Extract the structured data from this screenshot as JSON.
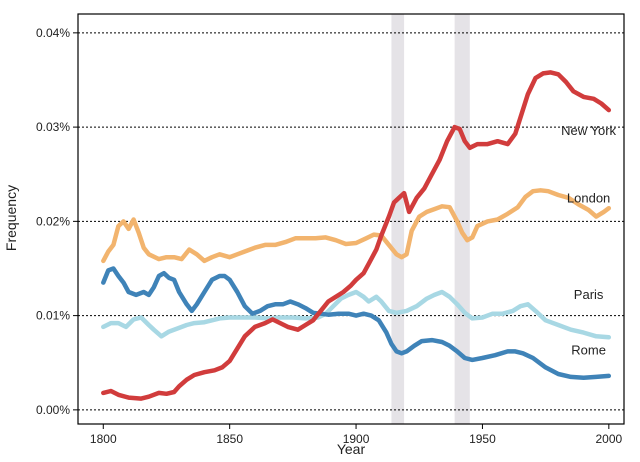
{
  "chart_data": {
    "type": "line",
    "xlabel": "Year",
    "ylabel": "Frequency",
    "xlim": [
      1790,
      2006
    ],
    "ylim": [
      -0.0015,
      0.042
    ],
    "x_ticks": [
      1800,
      1850,
      1900,
      1950,
      2000
    ],
    "x_tick_labels": [
      "1800",
      "1850",
      "1900",
      "1950",
      "2000"
    ],
    "y_ticks": [
      0,
      0.01,
      0.02,
      0.03,
      0.04
    ],
    "y_tick_labels": [
      "0.00%",
      "0.01%",
      "0.02%",
      "0.03%",
      "0.04%"
    ],
    "grid": "horizontal-dotted",
    "legend": "inline-right",
    "shaded_periods": [
      [
        1914,
        1919
      ],
      [
        1939,
        1945
      ]
    ],
    "series": [
      {
        "name": "New York",
        "color": "#d13c3c",
        "points": [
          [
            1800,
            0.0018
          ],
          [
            1803,
            0.002
          ],
          [
            1806,
            0.0016
          ],
          [
            1810,
            0.0013
          ],
          [
            1815,
            0.0012
          ],
          [
            1818,
            0.0014
          ],
          [
            1822,
            0.0018
          ],
          [
            1825,
            0.0017
          ],
          [
            1828,
            0.0019
          ],
          [
            1830,
            0.0025
          ],
          [
            1833,
            0.0032
          ],
          [
            1836,
            0.0037
          ],
          [
            1840,
            0.004
          ],
          [
            1844,
            0.0042
          ],
          [
            1847,
            0.0045
          ],
          [
            1850,
            0.0052
          ],
          [
            1853,
            0.0065
          ],
          [
            1856,
            0.0078
          ],
          [
            1860,
            0.0088
          ],
          [
            1864,
            0.0092
          ],
          [
            1867,
            0.0096
          ],
          [
            1870,
            0.0092
          ],
          [
            1873,
            0.0088
          ],
          [
            1877,
            0.0085
          ],
          [
            1880,
            0.009
          ],
          [
            1883,
            0.0095
          ],
          [
            1886,
            0.0105
          ],
          [
            1889,
            0.0115
          ],
          [
            1892,
            0.012
          ],
          [
            1895,
            0.0125
          ],
          [
            1898,
            0.0132
          ],
          [
            1900,
            0.0138
          ],
          [
            1903,
            0.0145
          ],
          [
            1905,
            0.0155
          ],
          [
            1908,
            0.017
          ],
          [
            1910,
            0.0185
          ],
          [
            1913,
            0.0205
          ],
          [
            1915,
            0.022
          ],
          [
            1917,
            0.0225
          ],
          [
            1919,
            0.023
          ],
          [
            1921,
            0.021
          ],
          [
            1924,
            0.0225
          ],
          [
            1927,
            0.0235
          ],
          [
            1930,
            0.025
          ],
          [
            1933,
            0.0265
          ],
          [
            1936,
            0.0285
          ],
          [
            1939,
            0.03
          ],
          [
            1941,
            0.0298
          ],
          [
            1943,
            0.0285
          ],
          [
            1945,
            0.0278
          ],
          [
            1948,
            0.0282
          ],
          [
            1952,
            0.0282
          ],
          [
            1956,
            0.0285
          ],
          [
            1960,
            0.0282
          ],
          [
            1963,
            0.0293
          ],
          [
            1965,
            0.031
          ],
          [
            1968,
            0.0335
          ],
          [
            1971,
            0.0352
          ],
          [
            1974,
            0.0357
          ],
          [
            1977,
            0.0358
          ],
          [
            1980,
            0.0356
          ],
          [
            1983,
            0.0348
          ],
          [
            1986,
            0.0338
          ],
          [
            1990,
            0.0332
          ],
          [
            1994,
            0.033
          ],
          [
            1997,
            0.0325
          ],
          [
            2000,
            0.0318
          ]
        ]
      },
      {
        "name": "London",
        "color": "#f2b46e",
        "points": [
          [
            1800,
            0.0158
          ],
          [
            1802,
            0.0168
          ],
          [
            1804,
            0.0175
          ],
          [
            1806,
            0.0195
          ],
          [
            1808,
            0.02
          ],
          [
            1810,
            0.0192
          ],
          [
            1812,
            0.0202
          ],
          [
            1814,
            0.0188
          ],
          [
            1816,
            0.0172
          ],
          [
            1818,
            0.0165
          ],
          [
            1822,
            0.016
          ],
          [
            1825,
            0.0162
          ],
          [
            1828,
            0.0162
          ],
          [
            1831,
            0.016
          ],
          [
            1834,
            0.017
          ],
          [
            1837,
            0.0165
          ],
          [
            1840,
            0.0158
          ],
          [
            1843,
            0.0162
          ],
          [
            1846,
            0.0165
          ],
          [
            1850,
            0.0162
          ],
          [
            1853,
            0.0165
          ],
          [
            1856,
            0.0168
          ],
          [
            1860,
            0.0172
          ],
          [
            1864,
            0.0175
          ],
          [
            1868,
            0.0175
          ],
          [
            1872,
            0.0178
          ],
          [
            1876,
            0.0182
          ],
          [
            1880,
            0.0182
          ],
          [
            1884,
            0.0182
          ],
          [
            1888,
            0.0183
          ],
          [
            1892,
            0.018
          ],
          [
            1896,
            0.0176
          ],
          [
            1900,
            0.0177
          ],
          [
            1904,
            0.0182
          ],
          [
            1907,
            0.0186
          ],
          [
            1910,
            0.0185
          ],
          [
            1913,
            0.0175
          ],
          [
            1916,
            0.0165
          ],
          [
            1918,
            0.0162
          ],
          [
            1920,
            0.0165
          ],
          [
            1922,
            0.019
          ],
          [
            1925,
            0.0205
          ],
          [
            1928,
            0.021
          ],
          [
            1931,
            0.0213
          ],
          [
            1934,
            0.0216
          ],
          [
            1937,
            0.0215
          ],
          [
            1940,
            0.02
          ],
          [
            1942,
            0.0188
          ],
          [
            1944,
            0.018
          ],
          [
            1946,
            0.0183
          ],
          [
            1948,
            0.0195
          ],
          [
            1952,
            0.02
          ],
          [
            1956,
            0.0202
          ],
          [
            1960,
            0.0208
          ],
          [
            1964,
            0.0215
          ],
          [
            1967,
            0.0226
          ],
          [
            1970,
            0.0232
          ],
          [
            1973,
            0.0233
          ],
          [
            1976,
            0.0232
          ],
          [
            1980,
            0.0228
          ],
          [
            1984,
            0.0225
          ],
          [
            1988,
            0.0218
          ],
          [
            1992,
            0.0212
          ],
          [
            1995,
            0.0205
          ],
          [
            1998,
            0.021
          ],
          [
            2000,
            0.0214
          ]
        ]
      },
      {
        "name": "Paris",
        "color": "#a8d8e4",
        "points": [
          [
            1800,
            0.0088
          ],
          [
            1803,
            0.0092
          ],
          [
            1806,
            0.0092
          ],
          [
            1809,
            0.0088
          ],
          [
            1812,
            0.0096
          ],
          [
            1815,
            0.0098
          ],
          [
            1818,
            0.009
          ],
          [
            1820,
            0.0085
          ],
          [
            1823,
            0.0078
          ],
          [
            1826,
            0.0083
          ],
          [
            1830,
            0.0087
          ],
          [
            1833,
            0.009
          ],
          [
            1836,
            0.0092
          ],
          [
            1840,
            0.0093
          ],
          [
            1843,
            0.0095
          ],
          [
            1846,
            0.0097
          ],
          [
            1850,
            0.0098
          ],
          [
            1855,
            0.0098
          ],
          [
            1860,
            0.0098
          ],
          [
            1865,
            0.0097
          ],
          [
            1870,
            0.0098
          ],
          [
            1875,
            0.0098
          ],
          [
            1880,
            0.0097
          ],
          [
            1885,
            0.0098
          ],
          [
            1888,
            0.0102
          ],
          [
            1891,
            0.011
          ],
          [
            1894,
            0.0118
          ],
          [
            1897,
            0.0122
          ],
          [
            1900,
            0.0125
          ],
          [
            1903,
            0.012
          ],
          [
            1905,
            0.0115
          ],
          [
            1908,
            0.012
          ],
          [
            1910,
            0.0115
          ],
          [
            1913,
            0.0105
          ],
          [
            1916,
            0.0103
          ],
          [
            1920,
            0.0105
          ],
          [
            1924,
            0.011
          ],
          [
            1928,
            0.0118
          ],
          [
            1931,
            0.0122
          ],
          [
            1934,
            0.0125
          ],
          [
            1937,
            0.012
          ],
          [
            1940,
            0.0112
          ],
          [
            1943,
            0.0103
          ],
          [
            1946,
            0.0097
          ],
          [
            1950,
            0.0098
          ],
          [
            1954,
            0.0102
          ],
          [
            1958,
            0.0102
          ],
          [
            1962,
            0.0105
          ],
          [
            1965,
            0.011
          ],
          [
            1968,
            0.0112
          ],
          [
            1971,
            0.0105
          ],
          [
            1975,
            0.0095
          ],
          [
            1980,
            0.009
          ],
          [
            1985,
            0.0085
          ],
          [
            1990,
            0.0082
          ],
          [
            1995,
            0.0078
          ],
          [
            2000,
            0.0077
          ]
        ]
      },
      {
        "name": "Rome",
        "color": "#3f83b8",
        "points": [
          [
            1800,
            0.0135
          ],
          [
            1802,
            0.0148
          ],
          [
            1804,
            0.015
          ],
          [
            1806,
            0.0142
          ],
          [
            1808,
            0.0135
          ],
          [
            1810,
            0.0125
          ],
          [
            1813,
            0.0122
          ],
          [
            1816,
            0.0125
          ],
          [
            1818,
            0.0122
          ],
          [
            1820,
            0.013
          ],
          [
            1822,
            0.0142
          ],
          [
            1824,
            0.0145
          ],
          [
            1826,
            0.014
          ],
          [
            1828,
            0.0138
          ],
          [
            1830,
            0.0125
          ],
          [
            1833,
            0.0112
          ],
          [
            1835,
            0.0105
          ],
          [
            1837,
            0.0112
          ],
          [
            1840,
            0.0125
          ],
          [
            1843,
            0.0138
          ],
          [
            1846,
            0.0142
          ],
          [
            1848,
            0.0142
          ],
          [
            1850,
            0.0138
          ],
          [
            1853,
            0.0125
          ],
          [
            1856,
            0.011
          ],
          [
            1859,
            0.0102
          ],
          [
            1862,
            0.0105
          ],
          [
            1865,
            0.011
          ],
          [
            1868,
            0.0112
          ],
          [
            1871,
            0.0112
          ],
          [
            1874,
            0.0115
          ],
          [
            1877,
            0.0112
          ],
          [
            1880,
            0.0108
          ],
          [
            1883,
            0.0103
          ],
          [
            1886,
            0.0102
          ],
          [
            1889,
            0.0101
          ],
          [
            1893,
            0.0102
          ],
          [
            1897,
            0.0102
          ],
          [
            1900,
            0.01
          ],
          [
            1903,
            0.0102
          ],
          [
            1906,
            0.01
          ],
          [
            1909,
            0.0095
          ],
          [
            1912,
            0.0082
          ],
          [
            1914,
            0.007
          ],
          [
            1916,
            0.0062
          ],
          [
            1918,
            0.006
          ],
          [
            1920,
            0.0062
          ],
          [
            1923,
            0.0068
          ],
          [
            1926,
            0.0073
          ],
          [
            1930,
            0.0074
          ],
          [
            1934,
            0.0072
          ],
          [
            1937,
            0.0068
          ],
          [
            1940,
            0.0062
          ],
          [
            1943,
            0.0055
          ],
          [
            1946,
            0.0053
          ],
          [
            1950,
            0.0055
          ],
          [
            1955,
            0.0058
          ],
          [
            1960,
            0.0062
          ],
          [
            1963,
            0.0062
          ],
          [
            1966,
            0.006
          ],
          [
            1970,
            0.0055
          ],
          [
            1975,
            0.0045
          ],
          [
            1980,
            0.0038
          ],
          [
            1985,
            0.0035
          ],
          [
            1990,
            0.0034
          ],
          [
            1995,
            0.0035
          ],
          [
            2000,
            0.0036
          ]
        ]
      }
    ]
  }
}
